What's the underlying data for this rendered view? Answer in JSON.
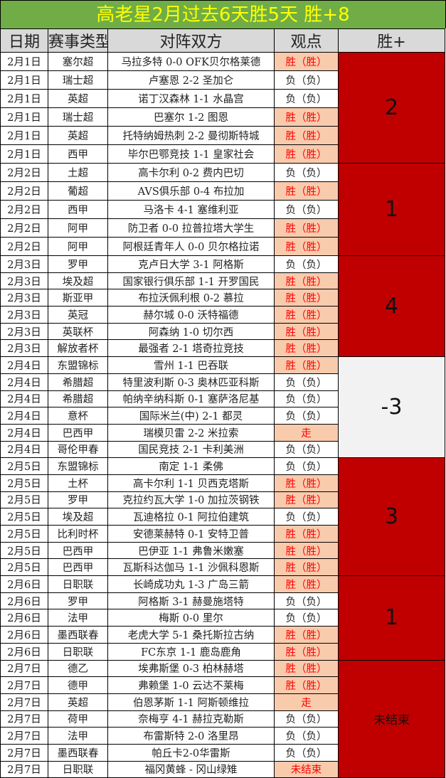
{
  "title": "高老星2月过去6天胜5天  胜+8",
  "headers": [
    "日期",
    "赛事类型",
    "对阵双方",
    "观点",
    "胜+"
  ],
  "colors": {
    "title_bg": "#70ad47",
    "title_text": "#ffff00",
    "win_bg": "#f8cbad",
    "win_text": "#ff0000",
    "group_positive": "#c00000",
    "group_negative": "#f2f2f2"
  },
  "groups": [
    {
      "summary": "2",
      "rows": [
        [
          "2月1日",
          "塞尔超",
          "马拉多特 0-0 OFK贝尔格莱德",
          "胜（胜）"
        ],
        [
          "2月1日",
          "瑞士超",
          "卢塞恩 2-2 圣加仑",
          "负（负）"
        ],
        [
          "2月1日",
          "英超",
          "诺丁汉森林 1-1 水晶宫",
          "负（负）"
        ],
        [
          "2月1日",
          "瑞士超",
          "巴塞尔 1-2 图恩",
          "胜（胜）"
        ],
        [
          "2月1日",
          "英超",
          "托特纳姆热刺 2-2 曼彻斯特城",
          "胜（胜）"
        ],
        [
          "2月1日",
          "西甲",
          "毕尔巴鄂竞技 1-1 皇家社会",
          "胜（胜）"
        ]
      ]
    },
    {
      "summary": "1",
      "rows": [
        [
          "2月2日",
          "土超",
          "高卡尔利 0-2 费内巴切",
          "负（负）"
        ],
        [
          "2月2日",
          "葡超",
          "AVS俱乐部 0-4 布拉加",
          "胜（胜）"
        ],
        [
          "2月2日",
          "西甲",
          "马洛卡 4-1 塞维利亚",
          "负（负）"
        ],
        [
          "2月2日",
          "阿甲",
          "防卫者 0-0 拉普拉塔大学生",
          "胜（胜）"
        ],
        [
          "2月2日",
          "阿甲",
          "阿根廷青年人 0-0 贝尔格拉诺",
          "胜（胜）"
        ]
      ]
    },
    {
      "summary": "4",
      "rows": [
        [
          "2月3日",
          "罗甲",
          "克卢日大学 3-1 阿格斯",
          "负（负）"
        ],
        [
          "2月3日",
          "埃及超",
          "国家银行俱乐部 1-1 开罗国民",
          "胜（胜）"
        ],
        [
          "2月3日",
          "斯亚甲",
          "布拉沃佩利根 0-2 慕拉",
          "胜（胜）"
        ],
        [
          "2月3日",
          "英冠",
          "赫尔城 0-0 沃特福德",
          "胜（胜）"
        ],
        [
          "2月3日",
          "英联杯",
          "阿森纳 1-0 切尔西",
          "胜（胜）"
        ],
        [
          "2月3日",
          "解放者杯",
          "最强者 2-1 塔奇拉竞技",
          "胜（胜）"
        ]
      ]
    },
    {
      "summary": "-3",
      "rows": [
        [
          "2月4日",
          "东盟锦标",
          "雪州 1-1 巴吞联",
          "胜（胜）"
        ],
        [
          "2月4日",
          "希腊超",
          "特里波利斯 0-3 奥林匹亚科斯",
          "负（负）"
        ],
        [
          "2月4日",
          "希腊超",
          "帕纳辛纳科斯 0-1 塞萨洛尼基",
          "负（负）"
        ],
        [
          "2月4日",
          "意杯",
          "国际米兰(中) 2-1 都灵",
          "负（负）"
        ],
        [
          "2月4日",
          "巴西甲",
          "瑞模贝雷 2-2 米拉索",
          "走"
        ],
        [
          "2月4日",
          "哥伦甲春",
          "国民竞技 2-1 卡利美洲",
          "负（负）"
        ]
      ]
    },
    {
      "summary": "3",
      "rows": [
        [
          "2月5日",
          "东盟锦标",
          "南定 1-1 柔佛",
          "负（负）"
        ],
        [
          "2月5日",
          "土杯",
          "高卡尔利 1-1 贝西克塔斯",
          "胜（胜）"
        ],
        [
          "2月5日",
          "罗甲",
          "克拉约瓦大学 1-0 加拉茨钢铁",
          "胜（胜）"
        ],
        [
          "2月5日",
          "埃及超",
          "瓦迪格拉 0-1 阿拉伯建筑",
          "负（负）"
        ],
        [
          "2月5日",
          "比利时杯",
          "安德莱赫特 0-1 安特卫普",
          "胜（胜）"
        ],
        [
          "2月5日",
          "巴西甲",
          "巴伊亚 1-1 弗鲁米嫩塞",
          "胜（胜）"
        ],
        [
          "2月5日",
          "巴西甲",
          "瓦斯科达伽马 1-1 沙佩科恩斯",
          "胜（胜）"
        ]
      ]
    },
    {
      "summary": "1",
      "rows": [
        [
          "2月6日",
          "日职联",
          "长崎成功丸 1-3 广岛三箭",
          "胜（胜）"
        ],
        [
          "2月6日",
          "罗甲",
          "阿格斯 3-1 赫曼施塔特",
          "负（负）"
        ],
        [
          "2月6日",
          "法甲",
          "梅斯 0-0 里尔",
          "负（负）"
        ],
        [
          "2月6日",
          "墨西联春",
          "老虎大学 5-1 桑托斯拉古纳",
          "胜（胜）"
        ],
        [
          "2月6日",
          "日职联",
          "FC东京 1-1 鹿岛鹿角",
          "胜（胜）"
        ]
      ]
    },
    {
      "summary": "未结束",
      "rows": [
        [
          "2月7日",
          "德乙",
          "埃弗斯堡 0-3 柏林赫塔",
          "胜（胜）"
        ],
        [
          "2月7日",
          "德甲",
          "弗赖堡 1-0 云达不莱梅",
          "胜（胜）"
        ],
        [
          "2月7日",
          "英超",
          "伯恩茅斯 1-1 阿斯顿维拉",
          "走"
        ],
        [
          "2月7日",
          "荷甲",
          "奈梅亨 4-1 赫拉克勒斯",
          "负（负）"
        ],
        [
          "2月7日",
          "法甲",
          "布雷斯特 2-0 洛里昂",
          "负（负）"
        ],
        [
          "2月7日",
          "墨西联春",
          "帕丘卡2-0华雷斯",
          "负（负）"
        ],
        [
          "2月7日",
          "日职联",
          "福冈黄蜂 - 冈山绿雉",
          "未结束"
        ]
      ]
    }
  ]
}
